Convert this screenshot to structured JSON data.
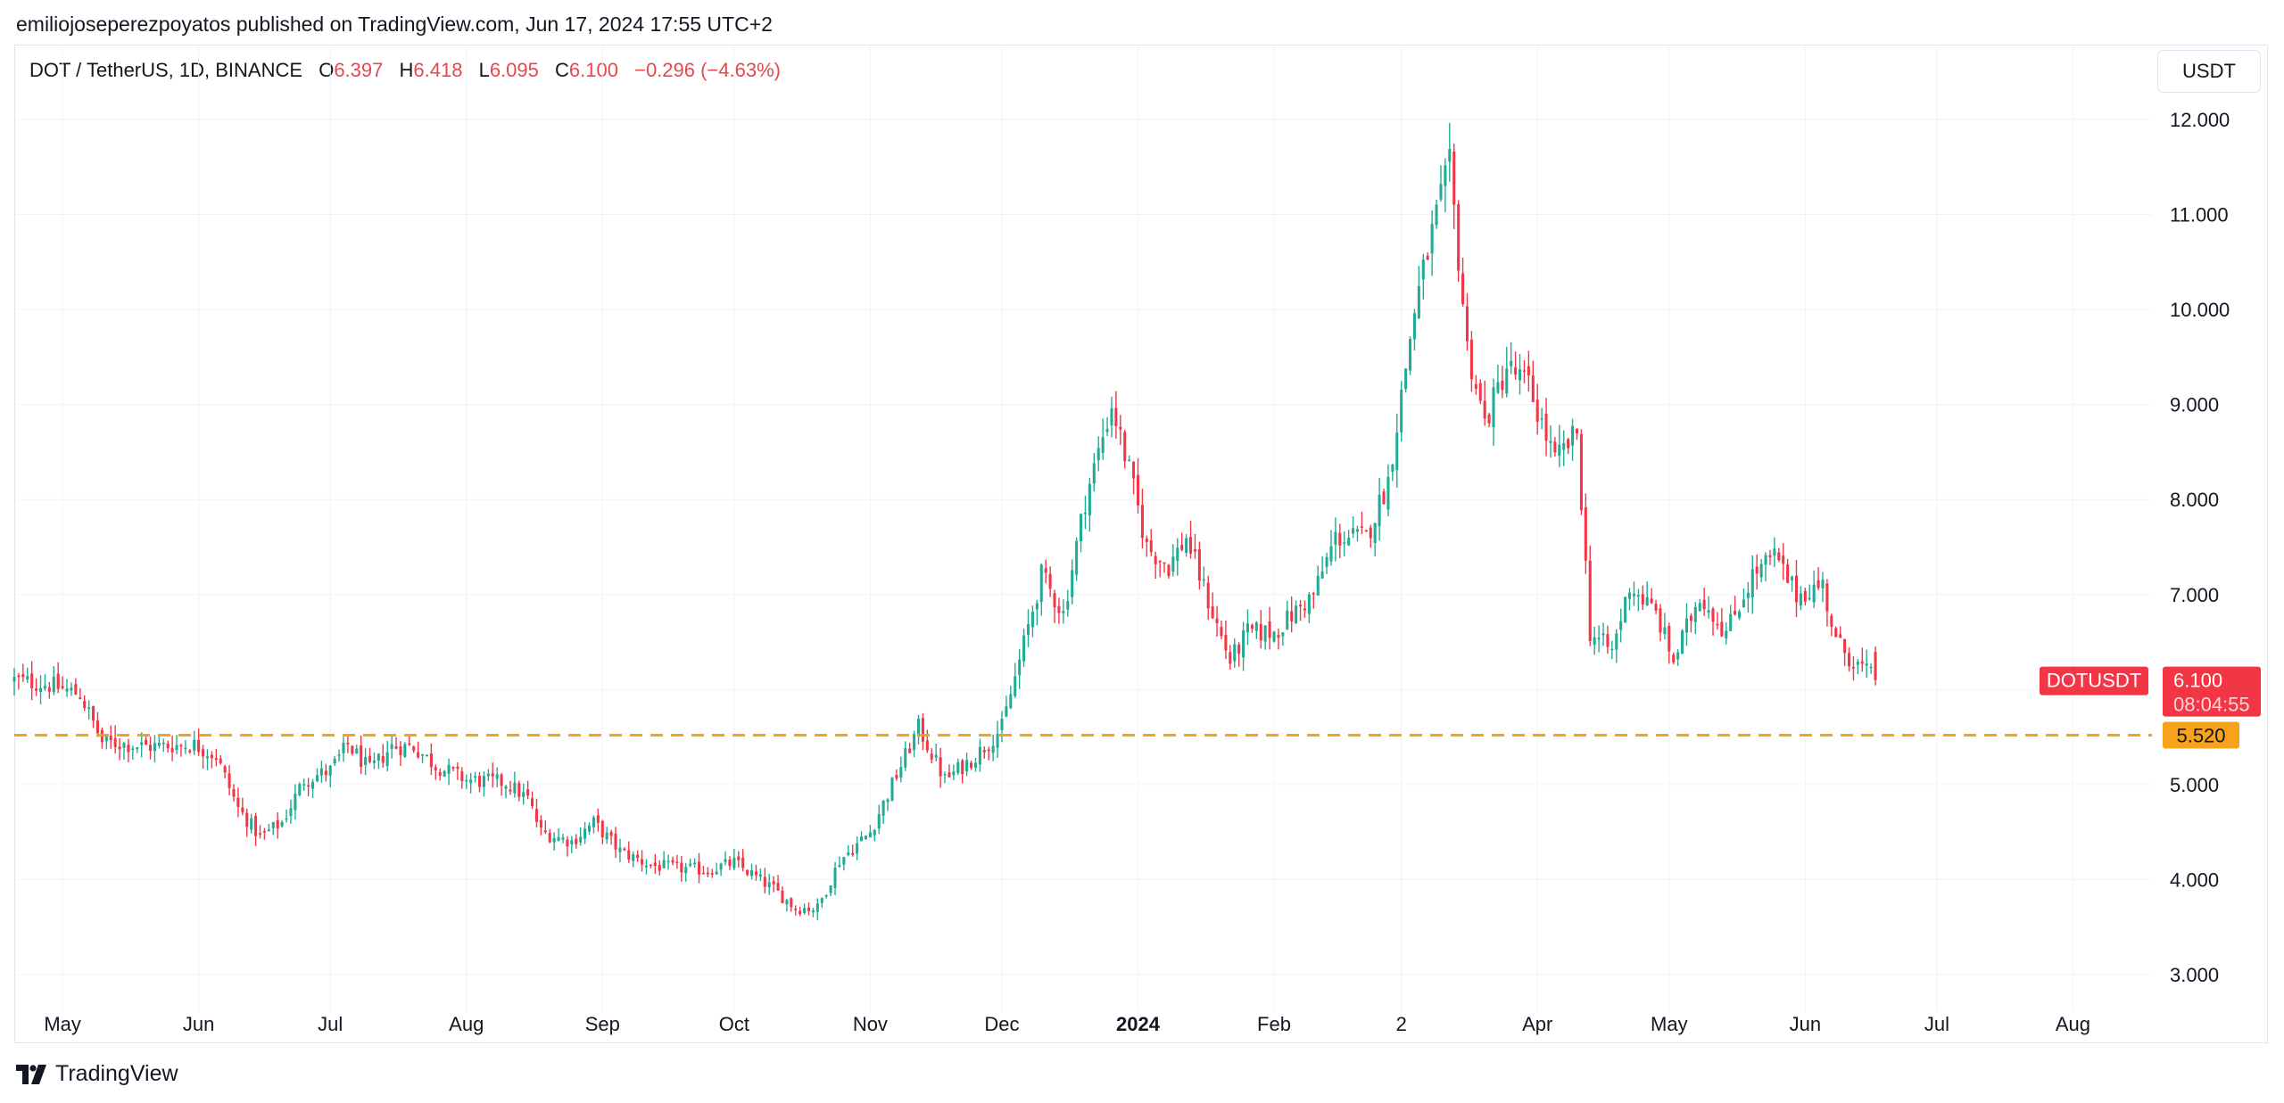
{
  "header": {
    "published": "emiliojoseperezpoyatos published on TradingView.com, Jun 17, 2024 17:55 UTC+2"
  },
  "legend": {
    "symbol": "DOT / TetherUS, 1D, BINANCE",
    "open_label": "O",
    "open": "6.397",
    "high_label": "H",
    "high": "6.418",
    "low_label": "L",
    "low": "6.095",
    "close_label": "C",
    "close": "6.100",
    "change": "−0.296 (−4.63%)"
  },
  "currency_button": "USDT",
  "branding": {
    "logo_text": "TradingView"
  },
  "colors": {
    "up": "#22ab94",
    "down": "#f23645",
    "level_line": "#f7a21b",
    "price_tag": "#f23645",
    "grid": "#f0f3fa",
    "axis_text": "#131722"
  },
  "chart_data": {
    "type": "candlestick",
    "symbol": "DOTUSDT",
    "y_axis": {
      "ticks": [
        3,
        4,
        5,
        6,
        7,
        8,
        9,
        10,
        11,
        12
      ],
      "tick_labels": [
        "3.000",
        "4.000",
        "5.000",
        "6.000",
        "7.000",
        "8.000",
        "9.000",
        "10.000",
        "11.000",
        "12.000"
      ],
      "range": [
        2.7,
        12.6
      ]
    },
    "x_axis": {
      "labels": [
        "May",
        "Jun",
        "Jul",
        "Aug",
        "Sep",
        "Oct",
        "Nov",
        "Dec",
        "2024",
        "Feb",
        "2",
        "Apr",
        "May",
        "Jun",
        "Jul",
        "Aug"
      ],
      "label_dates": [
        "2023-05-01",
        "2023-06-01",
        "2023-07-01",
        "2023-08-01",
        "2023-09-01",
        "2023-10-01",
        "2023-11-01",
        "2023-12-01",
        "2024-01-01",
        "2024-02-01",
        "2024-03-01",
        "2024-04-01",
        "2024-05-01",
        "2024-06-01",
        "2024-07-01",
        "2024-08-01"
      ],
      "bold_labels": [
        "2024"
      ],
      "range": [
        "2023-04-20",
        "2024-08-19"
      ]
    },
    "grid": true,
    "horizontal_line": {
      "value": 5.52,
      "label": "5.520",
      "style": "dashed"
    },
    "last_price": {
      "name": "DOTUSDT",
      "value": 6.1,
      "label": "6.100",
      "countdown": "08:04:55"
    },
    "price_path": [
      [
        "2023-04-20",
        6.1
      ],
      [
        "2023-04-28",
        6.05
      ],
      [
        "2023-05-05",
        5.95
      ],
      [
        "2023-05-10",
        5.45
      ],
      [
        "2023-05-20",
        5.4
      ],
      [
        "2023-05-31",
        5.42
      ],
      [
        "2023-06-05",
        5.3
      ],
      [
        "2023-06-10",
        4.75
      ],
      [
        "2023-06-15",
        4.45
      ],
      [
        "2023-06-20",
        4.6
      ],
      [
        "2023-06-25",
        5.05
      ],
      [
        "2023-07-01",
        5.15
      ],
      [
        "2023-07-05",
        5.42
      ],
      [
        "2023-07-10",
        5.15
      ],
      [
        "2023-07-15",
        5.4
      ],
      [
        "2023-07-20",
        5.4
      ],
      [
        "2023-07-25",
        5.2
      ],
      [
        "2023-08-01",
        5.05
      ],
      [
        "2023-08-10",
        5.02
      ],
      [
        "2023-08-15",
        4.85
      ],
      [
        "2023-08-18",
        4.5
      ],
      [
        "2023-08-25",
        4.4
      ],
      [
        "2023-08-30",
        4.6
      ],
      [
        "2023-09-05",
        4.3
      ],
      [
        "2023-09-12",
        4.15
      ],
      [
        "2023-09-18",
        4.12
      ],
      [
        "2023-09-25",
        4.1
      ],
      [
        "2023-10-01",
        4.18
      ],
      [
        "2023-10-10",
        3.9
      ],
      [
        "2023-10-15",
        3.7
      ],
      [
        "2023-10-20",
        3.7
      ],
      [
        "2023-10-25",
        4.2
      ],
      [
        "2023-11-01",
        4.5
      ],
      [
        "2023-11-08",
        5.2
      ],
      [
        "2023-11-12",
        5.6
      ],
      [
        "2023-11-18",
        5.05
      ],
      [
        "2023-11-25",
        5.3
      ],
      [
        "2023-12-01",
        5.6
      ],
      [
        "2023-12-05",
        6.3
      ],
      [
        "2023-12-10",
        7.2
      ],
      [
        "2023-12-15",
        6.8
      ],
      [
        "2023-12-20",
        8.0
      ],
      [
        "2023-12-26",
        9.0
      ],
      [
        "2023-12-30",
        8.3
      ],
      [
        "2024-01-03",
        7.5
      ],
      [
        "2024-01-08",
        7.3
      ],
      [
        "2024-01-12",
        7.6
      ],
      [
        "2024-01-18",
        6.8
      ],
      [
        "2024-01-22",
        6.3
      ],
      [
        "2024-01-26",
        6.6
      ],
      [
        "2024-02-01",
        6.6
      ],
      [
        "2024-02-10",
        7.0
      ],
      [
        "2024-02-15",
        7.6
      ],
      [
        "2024-02-22",
        7.6
      ],
      [
        "2024-02-27",
        8.2
      ],
      [
        "2024-03-04",
        10.0
      ],
      [
        "2024-03-08",
        10.8
      ],
      [
        "2024-03-12",
        11.5
      ],
      [
        "2024-03-16",
        9.6
      ],
      [
        "2024-03-20",
        8.8
      ],
      [
        "2024-03-25",
        9.4
      ],
      [
        "2024-03-30",
        9.2
      ],
      [
        "2024-04-05",
        8.4
      ],
      [
        "2024-04-10",
        8.7
      ],
      [
        "2024-04-13",
        6.6
      ],
      [
        "2024-04-18",
        6.4
      ],
      [
        "2024-04-22",
        7.1
      ],
      [
        "2024-04-28",
        6.8
      ],
      [
        "2024-05-02",
        6.3
      ],
      [
        "2024-05-08",
        7.0
      ],
      [
        "2024-05-14",
        6.6
      ],
      [
        "2024-05-20",
        7.2
      ],
      [
        "2024-05-25",
        7.4
      ],
      [
        "2024-05-30",
        7.0
      ],
      [
        "2024-06-05",
        7.1
      ],
      [
        "2024-06-08",
        6.5
      ],
      [
        "2024-06-12",
        6.3
      ],
      [
        "2024-06-17",
        6.1
      ]
    ]
  }
}
